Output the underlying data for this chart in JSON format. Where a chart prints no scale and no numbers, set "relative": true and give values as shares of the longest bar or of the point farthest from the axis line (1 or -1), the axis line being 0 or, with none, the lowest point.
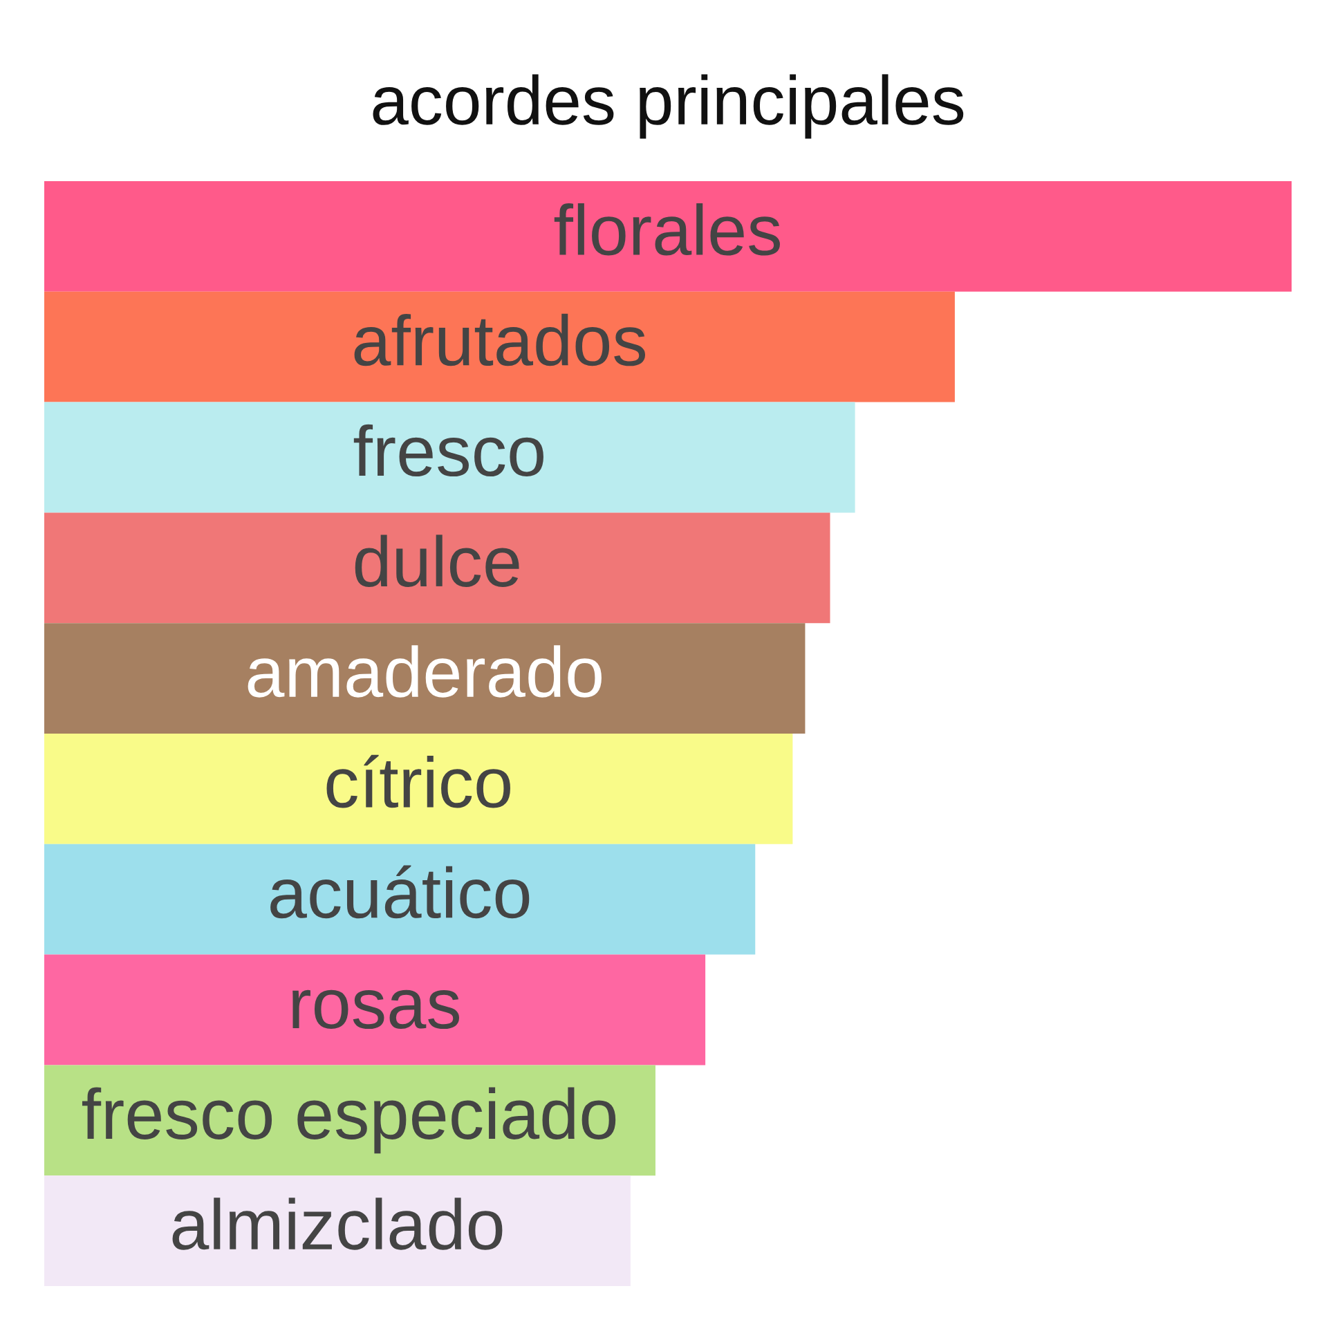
{
  "chart_data": {
    "type": "bar",
    "title": "acordes principales",
    "orientation": "horizontal",
    "relative": true,
    "categories": [
      "florales",
      "afrutados",
      "fresco",
      "dulce",
      "amaderado",
      "cítrico",
      "acuático",
      "rosas",
      "fresco especiado",
      "almizclado"
    ],
    "values": [
      1,
      0.73,
      0.65,
      0.63,
      0.61,
      0.6,
      0.57,
      0.53,
      0.49,
      0.47
    ],
    "colors": [
      "#ff5a8a",
      "#fd7556",
      "#baecef",
      "#f07777",
      "#a68061",
      "#f9fb89",
      "#9ddfec",
      "#fe67a2",
      "#b8e186",
      "#f2e8f6"
    ]
  }
}
